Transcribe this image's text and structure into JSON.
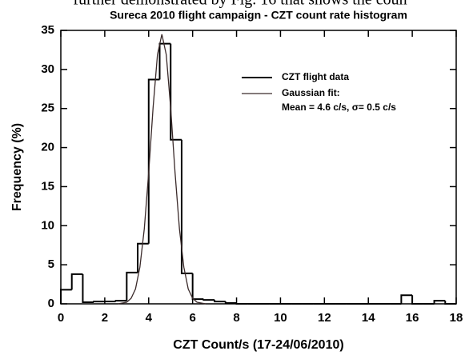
{
  "header_text": "further demonstrated by Fig. 16 that shows the coun",
  "chart_data": {
    "type": "histogram",
    "title": "Sureca 2010 flight campaign - CZT count rate histogram",
    "xlabel": "CZT Count/s (17-24/06/2010)",
    "ylabel": "Frequency (%)",
    "bins": [
      0,
      0.5,
      1,
      1.5,
      2,
      2.5,
      3,
      3.5,
      4,
      4.5,
      5,
      5.5,
      6,
      6.5,
      7,
      7.5,
      8,
      8.5,
      9,
      9.5,
      10,
      10.5,
      11,
      11.5,
      12,
      12.5,
      13,
      13.5,
      14,
      14.5,
      15,
      15.5,
      16,
      16.5,
      17,
      17.5,
      18
    ],
    "series": [
      {
        "name": "CZT flight data",
        "color": "#000000",
        "values": [
          1.8,
          3.8,
          0.2,
          0.3,
          0.3,
          0.4,
          4.0,
          7.7,
          28.7,
          33.3,
          21.0,
          3.9,
          0.6,
          0.5,
          0.3,
          0.1,
          0,
          0,
          0,
          0,
          0,
          0,
          0,
          0,
          0,
          0,
          0,
          0,
          0,
          0,
          0,
          1.1,
          0,
          0,
          0.4,
          0
        ]
      },
      {
        "name": "Gaussian fit:",
        "color": "#3a2a2a",
        "x": [
          2.6,
          3.0,
          3.2,
          3.4,
          3.6,
          3.8,
          4.0,
          4.2,
          4.4,
          4.6,
          4.8,
          5.0,
          5.2,
          5.4,
          5.6,
          5.8,
          6.0,
          6.2,
          6.6
        ],
        "values": [
          0.0,
          0.2,
          0.7,
          1.9,
          4.7,
          9.6,
          16.8,
          25.1,
          31.9,
          34.5,
          31.9,
          25.1,
          16.8,
          9.6,
          4.7,
          1.9,
          0.7,
          0.2,
          0.0
        ]
      }
    ],
    "legend_note": "Mean = 4.6 c/s, σ= 0.5 c/s",
    "xlim": [
      0,
      18
    ],
    "xticks": [
      0,
      2,
      4,
      6,
      8,
      10,
      12,
      14,
      16,
      18
    ],
    "ylim": [
      0,
      35
    ],
    "yticks": [
      0,
      5,
      10,
      15,
      20,
      25,
      30,
      35
    ],
    "grid": false
  }
}
